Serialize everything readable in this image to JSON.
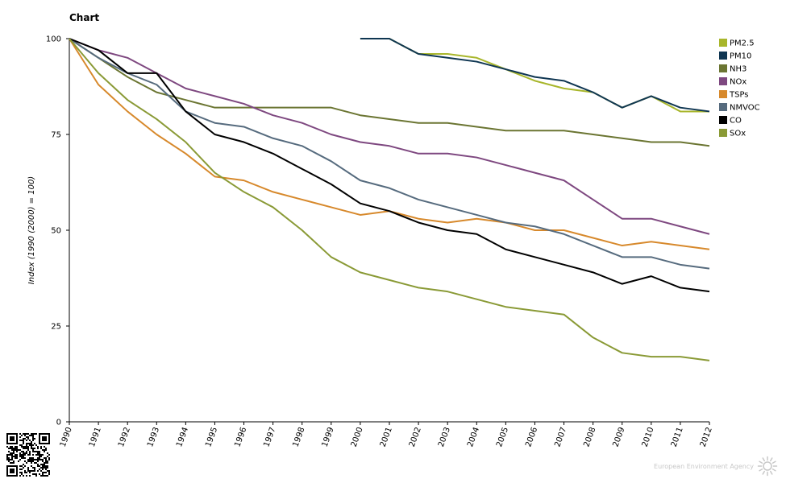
{
  "title": "Chart",
  "chart_data": {
    "type": "line",
    "title": "Chart",
    "xlabel": "",
    "ylabel": "Index (1990 (2000) = 100)",
    "ylim": [
      0,
      100
    ],
    "yticks": [
      0,
      25,
      50,
      75,
      100
    ],
    "x": [
      "1990",
      "1991",
      "1992",
      "1993",
      "1994",
      "1995",
      "1996",
      "1997",
      "1998",
      "1999",
      "2000",
      "2001",
      "2002",
      "2003",
      "2004",
      "2005",
      "2006",
      "2007",
      "2008",
      "2009",
      "2010",
      "2011",
      "2012"
    ],
    "legend_position": "top-right",
    "grid": false,
    "series": [
      {
        "name": "PM2.5",
        "color": "#a8b62b",
        "values": [
          null,
          null,
          null,
          null,
          null,
          null,
          null,
          null,
          null,
          null,
          100,
          100,
          96,
          96,
          95,
          92,
          89,
          87,
          86,
          82,
          85,
          81,
          81
        ]
      },
      {
        "name": "PM10",
        "color": "#0f3652",
        "values": [
          null,
          null,
          null,
          null,
          null,
          null,
          null,
          null,
          null,
          null,
          100,
          100,
          96,
          95,
          94,
          92,
          90,
          89,
          86,
          82,
          85,
          82,
          81
        ]
      },
      {
        "name": "NH3",
        "color": "#6b7532",
        "values": [
          100,
          95,
          90,
          86,
          84,
          82,
          82,
          82,
          82,
          82,
          80,
          79,
          78,
          78,
          77,
          76,
          76,
          76,
          75,
          74,
          73,
          73,
          72
        ]
      },
      {
        "name": "NOx",
        "color": "#7e4880",
        "values": [
          100,
          97,
          95,
          91,
          87,
          85,
          83,
          80,
          78,
          75,
          73,
          72,
          70,
          70,
          69,
          67,
          65,
          63,
          58,
          53,
          53,
          51,
          49
        ]
      },
      {
        "name": "TSPs",
        "color": "#d7892c",
        "values": [
          100,
          88,
          81,
          75,
          70,
          64,
          63,
          60,
          58,
          56,
          54,
          55,
          53,
          52,
          53,
          52,
          50,
          50,
          48,
          46,
          47,
          46,
          45
        ]
      },
      {
        "name": "NMVOC",
        "color": "#566b7e",
        "values": [
          100,
          95,
          91,
          88,
          81,
          78,
          77,
          74,
          72,
          68,
          63,
          61,
          58,
          56,
          54,
          52,
          51,
          49,
          46,
          43,
          43,
          41,
          40
        ]
      },
      {
        "name": "CO",
        "color": "#000000",
        "values": [
          100,
          97,
          91,
          91,
          81,
          75,
          73,
          70,
          66,
          62,
          57,
          55,
          52,
          50,
          49,
          45,
          43,
          41,
          39,
          36,
          38,
          35,
          34
        ]
      },
      {
        "name": "SOx",
        "color": "#8a9a36",
        "values": [
          100,
          91,
          84,
          79,
          73,
          65,
          60,
          56,
          50,
          43,
          39,
          37,
          35,
          34,
          32,
          30,
          29,
          28,
          22,
          18,
          17,
          17,
          16
        ]
      }
    ]
  },
  "footer": {
    "logo_text": "European Environment Agency",
    "qr_icon": "qr-code-icon",
    "logo_icon": "eea-sun-icon"
  }
}
